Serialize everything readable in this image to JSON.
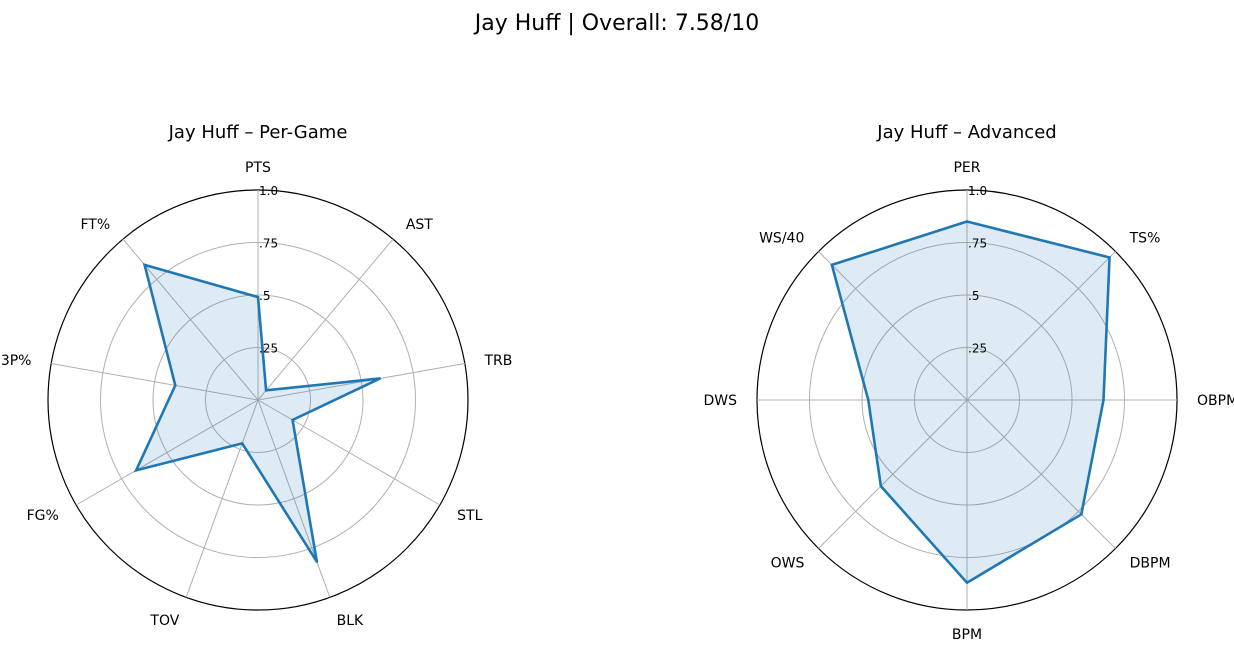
{
  "figure": {
    "title": "Jay Huff | Overall: 7.58/10"
  },
  "colors": {
    "series_line": "#1f77b4",
    "series_fill": "#1f77b4",
    "grid": "#b0b0b0",
    "frame": "#000000"
  },
  "chart_data": [
    {
      "type": "radar",
      "title": "Jay Huff – Per-Game",
      "categories": [
        "PTS",
        "AST",
        "TRB",
        "STL",
        "BLK",
        "TOV",
        "FG%",
        "3P%",
        "FT%"
      ],
      "values": [
        0.49,
        0.06,
        0.59,
        0.19,
        0.82,
        0.22,
        0.67,
        0.4,
        0.84
      ],
      "r_ticks": [
        0.25,
        0.5,
        0.75,
        1.0
      ],
      "r_tick_labels": [
        ".25",
        ".5",
        ".75",
        "1.0"
      ],
      "ylim": [
        0,
        1
      ],
      "grid": true
    },
    {
      "type": "radar",
      "title": "Jay Huff – Advanced",
      "categories": [
        "PER",
        "TS%",
        "OBPM",
        "DBPM",
        "BPM",
        "OWS",
        "DWS",
        "WS/40"
      ],
      "values": [
        0.85,
        0.96,
        0.65,
        0.77,
        0.87,
        0.58,
        0.47,
        0.91
      ],
      "r_ticks": [
        0.25,
        0.5,
        0.75,
        1.0
      ],
      "r_tick_labels": [
        ".25",
        ".5",
        ".75",
        "1.0"
      ],
      "ylim": [
        0,
        1
      ],
      "grid": true
    }
  ]
}
